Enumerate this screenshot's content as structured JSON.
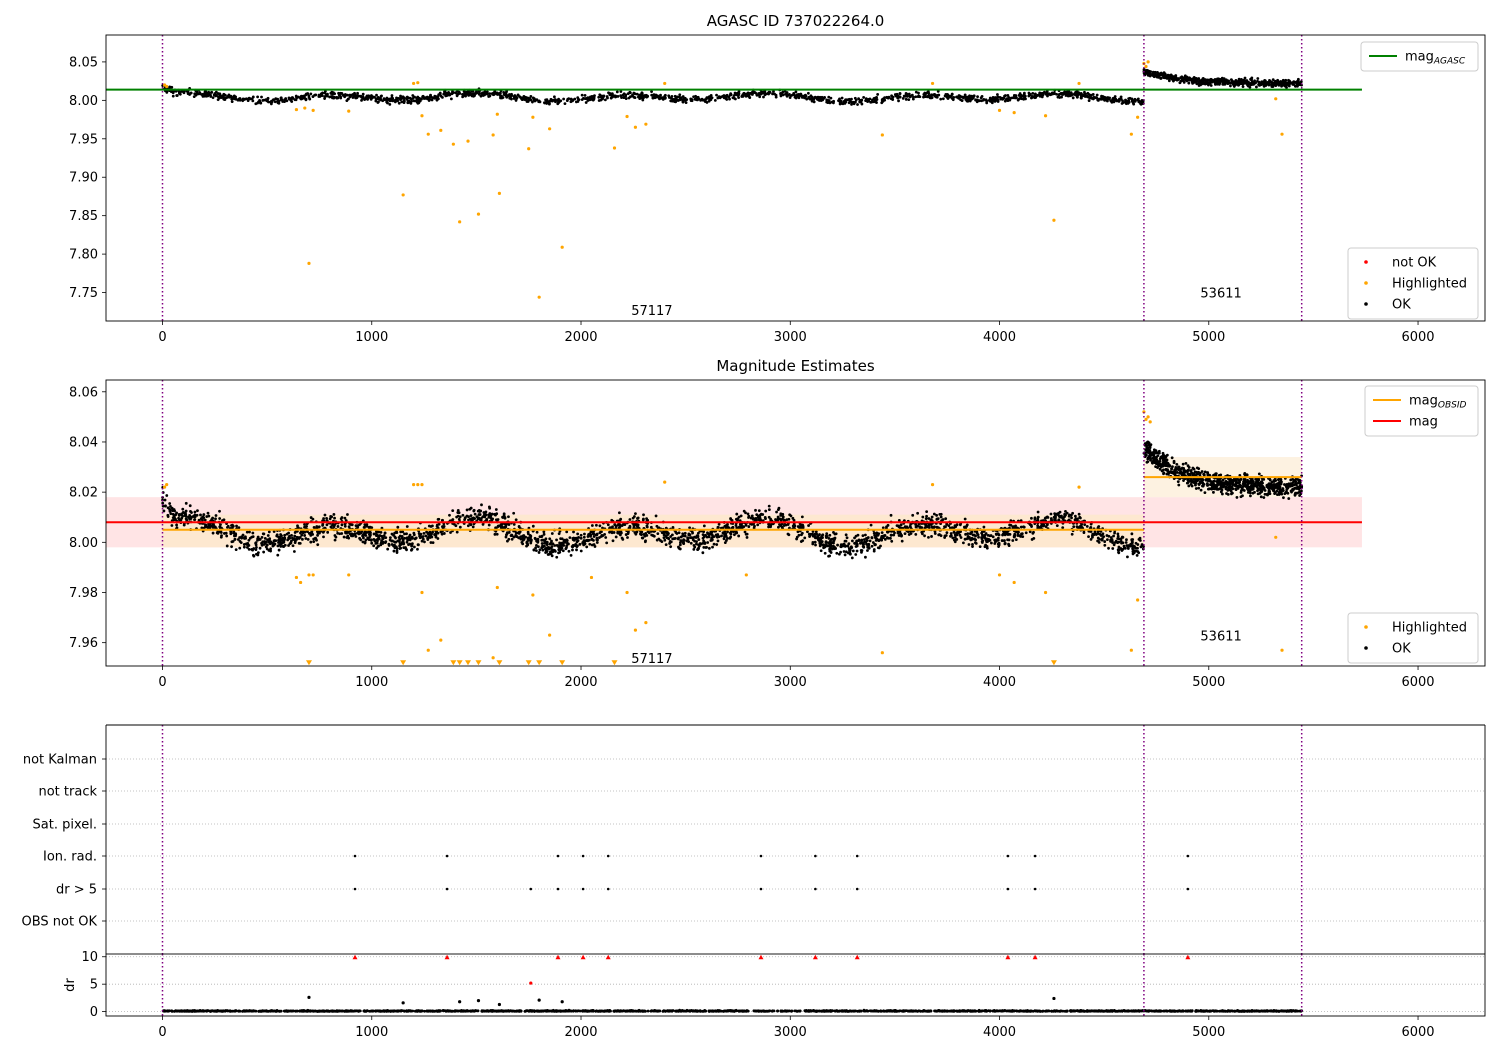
{
  "colors": {
    "ok": "#000000",
    "highlighted": "#ffa500",
    "not_ok": "#ff0000",
    "agasc_line": "#008000",
    "mag_line": "#ff0000",
    "mag_obsid_line": "#ffa500",
    "mag_band": "#ffdfe0",
    "obsid_band": "#fde9cc",
    "obs_boundary": "#800080",
    "grid": "#b0b0b0"
  },
  "chart_data": [
    {
      "type": "scatter",
      "title": "AGASC ID 737022264.0",
      "xlim": [
        -270,
        6320
      ],
      "ylim": [
        7.713,
        8.085
      ],
      "xticks": [
        0,
        1000,
        2000,
        3000,
        4000,
        5000,
        6000
      ],
      "xtick_labels": [
        "0",
        "1000",
        "2000",
        "3000",
        "4000",
        "5000",
        "6000"
      ],
      "yticks": [
        7.75,
        7.8,
        7.85,
        7.9,
        7.95,
        8.0,
        8.05
      ],
      "ytick_labels": [
        "7.75",
        "7.80",
        "7.85",
        "7.90",
        "7.95",
        "8.00",
        "8.05"
      ],
      "obs_boundaries": [
        0,
        4690,
        5444
      ],
      "obs_labels": [
        {
          "text": "57117",
          "x": 2240,
          "y": 7.726
        },
        {
          "text": "53611",
          "x": 4960,
          "y": 7.749
        }
      ],
      "lines": [
        {
          "name": "mag",
          "sub": "AGASC",
          "y": 8.014,
          "x_from": -270,
          "x_to": 5732,
          "color": "#008000"
        }
      ],
      "legend_top": [
        {
          "label": "mag",
          "sub": "AGASC",
          "kind": "line",
          "color": "#008000"
        }
      ],
      "legend_bottom": [
        {
          "label": "not OK",
          "kind": "dot",
          "color": "#ff0000"
        },
        {
          "label": "Highlighted",
          "kind": "dot",
          "color": "#ffa500"
        },
        {
          "label": "OK",
          "kind": "dot",
          "color": "#000000"
        }
      ],
      "series": [
        {
          "name": "Highlighted",
          "color": "#ffa500",
          "points": [
            [
              700,
              7.788
            ],
            [
              1150,
              7.877
            ],
            [
              1420,
              7.842
            ],
            [
              1510,
              7.852
            ],
            [
              1610,
              7.879
            ],
            [
              1800,
              7.744
            ],
            [
              1910,
              7.809
            ],
            [
              4260,
              7.844
            ],
            [
              1270,
              7.956
            ],
            [
              1330,
              7.961
            ],
            [
              1390,
              7.943
            ],
            [
              1460,
              7.947
            ],
            [
              1580,
              7.955
            ],
            [
              1750,
              7.937
            ],
            [
              1770,
              7.978
            ],
            [
              1850,
              7.963
            ],
            [
              2160,
              7.938
            ],
            [
              2220,
              7.979
            ],
            [
              2260,
              7.965
            ],
            [
              2310,
              7.969
            ],
            [
              3440,
              7.955
            ],
            [
              4630,
              7.956
            ],
            [
              5350,
              7.956
            ],
            [
              1240,
              7.98
            ],
            [
              1600,
              7.982
            ],
            [
              4220,
              7.98
            ],
            [
              4660,
              7.978
            ],
            [
              5320,
              8.002
            ],
            [
              640,
              7.988
            ],
            [
              680,
              7.99
            ],
            [
              720,
              7.987
            ],
            [
              890,
              7.986
            ],
            [
              4000,
              7.987
            ],
            [
              4070,
              7.984
            ],
            [
              1200,
              8.022
            ],
            [
              1220,
              8.023
            ],
            [
              2400,
              8.022
            ],
            [
              3680,
              8.022
            ],
            [
              4380,
              8.022
            ],
            [
              4690,
              8.048
            ],
            [
              4700,
              8.044
            ],
            [
              4710,
              8.05
            ],
            [
              10,
              8.02
            ],
            [
              20,
              8.018
            ]
          ]
        }
      ],
      "ok_model": {
        "segments": [
          {
            "x_from": 0,
            "x_to": 4690,
            "count": 1600,
            "scatter": 0.0045
          },
          {
            "x_from": 4690,
            "x_to": 5444,
            "count": 520,
            "scatter": 0.0045
          }
        ]
      }
    },
    {
      "type": "scatter",
      "title": "Magnitude Estimates",
      "xlim": [
        -270,
        6320
      ],
      "ylim": [
        7.9507,
        8.0647
      ],
      "xticks": [
        0,
        1000,
        2000,
        3000,
        4000,
        5000,
        6000
      ],
      "xtick_labels": [
        "0",
        "1000",
        "2000",
        "3000",
        "4000",
        "5000",
        "6000"
      ],
      "yticks": [
        7.96,
        7.98,
        8.0,
        8.02,
        8.04,
        8.06
      ],
      "ytick_labels": [
        "7.96",
        "7.98",
        "8.00",
        "8.02",
        "8.04",
        "8.06"
      ],
      "obs_boundaries": [
        0,
        4690,
        5444
      ],
      "obs_labels": [
        {
          "text": "57117",
          "x": 2240,
          "y": 7.9535
        },
        {
          "text": "53611",
          "x": 4960,
          "y": 7.9625
        }
      ],
      "bands": [
        {
          "name": "mag",
          "x_from": -270,
          "x_to": 5732,
          "y_from": 7.998,
          "y_to": 8.018,
          "color": "#ffdfe0"
        },
        {
          "name": "mag_OBSID 57117",
          "x_from": 0,
          "x_to": 4690,
          "y_from": 7.998,
          "y_to": 8.011,
          "color": "#fde9cc"
        },
        {
          "name": "mag_OBSID 53611",
          "x_from": 4690,
          "x_to": 5444,
          "y_from": 8.018,
          "y_to": 8.034,
          "color": "#fdf0dc"
        }
      ],
      "lines": [
        {
          "name": "mag",
          "y": 8.008,
          "x_from": -270,
          "x_to": 5732,
          "color": "#ff0000"
        },
        {
          "name": "mag_OBSID 57117",
          "y": 8.005,
          "x_from": 0,
          "x_to": 4690,
          "color": "#ffa500"
        },
        {
          "name": "mag_OBSID 53611",
          "y": 8.026,
          "x_from": 4690,
          "x_to": 5444,
          "color": "#ffa500"
        }
      ],
      "legend_top": [
        {
          "label": "mag",
          "sub": "OBSID",
          "kind": "line",
          "color": "#ffa500"
        },
        {
          "label": "mag",
          "kind": "line",
          "color": "#ff0000"
        }
      ],
      "legend_bottom": [
        {
          "label": "Highlighted",
          "kind": "dot",
          "color": "#ffa500"
        },
        {
          "label": "OK",
          "kind": "dot",
          "color": "#000000"
        }
      ],
      "series": [
        {
          "name": "Highlighted",
          "color": "#ffa500",
          "points": [
            [
              1270,
              7.957
            ],
            [
              1330,
              7.961
            ],
            [
              1580,
              7.954
            ],
            [
              1850,
              7.963
            ],
            [
              2260,
              7.965
            ],
            [
              2310,
              7.968
            ],
            [
              3440,
              7.956
            ],
            [
              4630,
              7.957
            ],
            [
              5350,
              7.957
            ],
            [
              1240,
              7.98
            ],
            [
              1600,
              7.982
            ],
            [
              1770,
              7.979
            ],
            [
              2220,
              7.98
            ],
            [
              4220,
              7.98
            ],
            [
              640,
              7.986
            ],
            [
              660,
              7.984
            ],
            [
              700,
              7.987
            ],
            [
              720,
              7.987
            ],
            [
              890,
              7.987
            ],
            [
              2050,
              7.986
            ],
            [
              2790,
              7.987
            ],
            [
              4000,
              7.987
            ],
            [
              4070,
              7.984
            ],
            [
              4660,
              7.977
            ],
            [
              5320,
              8.002
            ],
            [
              1200,
              8.023
            ],
            [
              1220,
              8.023
            ],
            [
              1240,
              8.023
            ],
            [
              2400,
              8.024
            ],
            [
              3680,
              8.023
            ],
            [
              4380,
              8.022
            ],
            [
              10,
              8.022
            ],
            [
              20,
              8.023
            ],
            [
              4690,
              8.052
            ],
            [
              4700,
              8.049
            ],
            [
              4710,
              8.05
            ],
            [
              4720,
              8.048
            ]
          ]
        },
        {
          "name": "Highlighted (clipped)",
          "color": "#ffa500",
          "marker": "triangle-down",
          "points": [
            [
              700,
              7.9518
            ],
            [
              1150,
              7.9518
            ],
            [
              1390,
              7.9518
            ],
            [
              1420,
              7.9518
            ],
            [
              1460,
              7.9518
            ],
            [
              1510,
              7.9518
            ],
            [
              1610,
              7.9518
            ],
            [
              1750,
              7.9518
            ],
            [
              1800,
              7.9518
            ],
            [
              1910,
              7.9518
            ],
            [
              2160,
              7.9518
            ],
            [
              4260,
              7.9518
            ]
          ]
        }
      ],
      "ok_model": {
        "segments": [
          {
            "x_from": 0,
            "x_to": 4690,
            "count": 2600,
            "scatter": 0.0045
          },
          {
            "x_from": 4690,
            "x_to": 5444,
            "count": 800,
            "scatter": 0.004
          }
        ]
      }
    },
    {
      "type": "scatter",
      "title": "",
      "xlim": [
        -270,
        6320
      ],
      "categories": [
        "OBS not OK",
        "dr > 5",
        "Ion. rad.",
        "Sat. pixel.",
        "not track",
        "not Kalman"
      ],
      "obs_boundaries": [
        0,
        4690,
        5444
      ],
      "flag_events": [
        {
          "flag": "Ion. rad.",
          "x": [
            920,
            1360,
            1890,
            2010,
            2130,
            2860,
            3120,
            3320,
            4040,
            4170,
            4900
          ]
        },
        {
          "flag": "dr > 5",
          "x": [
            920,
            1360,
            1760,
            1890,
            2010,
            2130,
            2860,
            3120,
            3320,
            4040,
            4170,
            4900
          ]
        }
      ]
    },
    {
      "type": "scatter",
      "title": "",
      "xlim": [
        -270,
        6320
      ],
      "ylim": [
        -0.8,
        10.5
      ],
      "xticks": [
        0,
        1000,
        2000,
        3000,
        4000,
        5000,
        6000
      ],
      "xtick_labels": [
        "0",
        "1000",
        "2000",
        "3000",
        "4000",
        "5000",
        "6000"
      ],
      "yticks": [
        0,
        5,
        10
      ],
      "ytick_labels": [
        "0",
        "5",
        "10"
      ],
      "ylabel": "dr",
      "obs_boundaries": [
        0,
        4690,
        5444
      ],
      "series": [
        {
          "name": "not OK (clipped)",
          "color": "#ff0000",
          "marker": "triangle-up",
          "points": [
            [
              920,
              9.9
            ],
            [
              1360,
              9.9
            ],
            [
              1890,
              9.9
            ],
            [
              2010,
              9.9
            ],
            [
              2130,
              9.9
            ],
            [
              2860,
              9.9
            ],
            [
              3120,
              9.9
            ],
            [
              3320,
              9.9
            ],
            [
              4040,
              9.9
            ],
            [
              4170,
              9.9
            ],
            [
              4900,
              9.9
            ]
          ]
        },
        {
          "name": "not OK",
          "color": "#ff0000",
          "points": [
            [
              1760,
              5.2
            ]
          ]
        },
        {
          "name": "OK outliers",
          "color": "#000000",
          "points": [
            [
              700,
              2.6
            ],
            [
              1150,
              1.6
            ],
            [
              1420,
              1.8
            ],
            [
              1510,
              2.0
            ],
            [
              1610,
              1.3
            ],
            [
              1800,
              2.1
            ],
            [
              1910,
              1.8
            ],
            [
              4260,
              2.4
            ]
          ]
        }
      ],
      "ok_model": {
        "segments": [
          {
            "x_from": 0,
            "x_to": 5444,
            "count": 2000,
            "scatter": 0.15
          }
        ]
      }
    }
  ]
}
